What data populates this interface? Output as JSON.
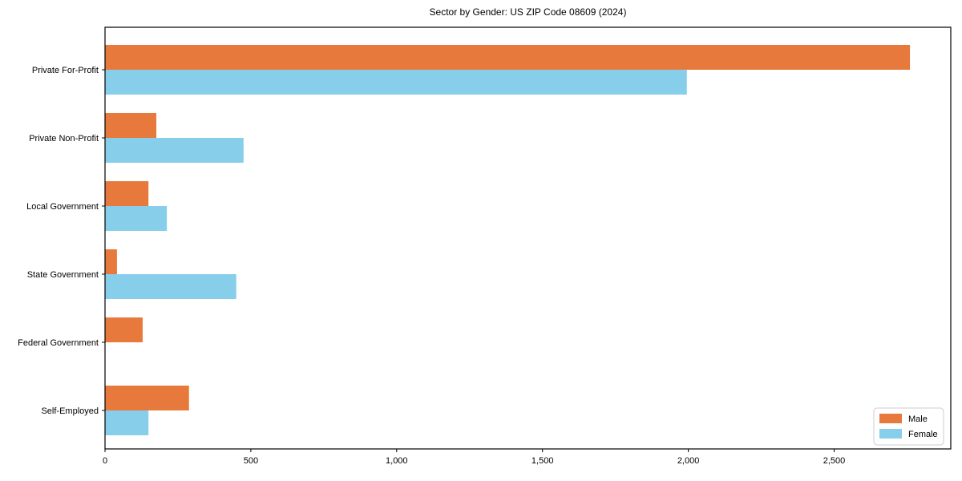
{
  "chart_data": {
    "type": "bar",
    "orientation": "horizontal",
    "title": "Sector by Gender: US ZIP Code 08609 (2024)",
    "categories": [
      "Private For-Profit",
      "Private Non-Profit",
      "Local Government",
      "State Government",
      "Federal Government",
      "Self-Employed"
    ],
    "series": [
      {
        "name": "Male",
        "color": "#E8793D",
        "values": [
          2760,
          176,
          149,
          41,
          129,
          288
        ]
      },
      {
        "name": "Female",
        "color": "#87CEEB",
        "values": [
          1995,
          475,
          212,
          450,
          0,
          149
        ]
      }
    ],
    "xlabel": "",
    "ylabel": "",
    "xlim": [
      0,
      2900
    ],
    "xticks": [
      {
        "value": 0,
        "label": "0"
      },
      {
        "value": 500,
        "label": "500"
      },
      {
        "value": 1000,
        "label": "1,000"
      },
      {
        "value": 1500,
        "label": "1,500"
      },
      {
        "value": 2000,
        "label": "2,000"
      },
      {
        "value": 2500,
        "label": "2,500"
      }
    ],
    "grid": false,
    "legend": {
      "position": "lower right",
      "items": [
        {
          "label": "Male",
          "color": "#E8793D"
        },
        {
          "label": "Female",
          "color": "#87CEEB"
        }
      ]
    },
    "colors": {
      "axis": "#000000",
      "text": "#000000",
      "legend_border": "#cccccc",
      "background": "#ffffff"
    }
  }
}
